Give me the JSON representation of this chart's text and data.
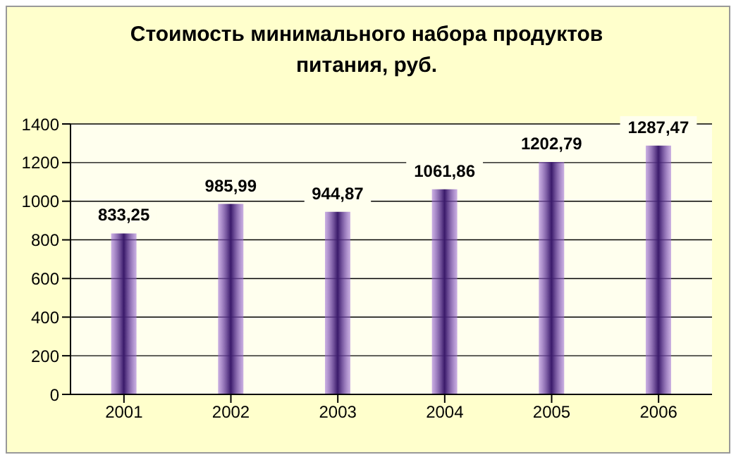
{
  "chart_data": {
    "type": "bar",
    "title": "Стоимость минимального набора продуктов питания, руб.",
    "categories": [
      "2001",
      "2002",
      "2003",
      "2004",
      "2005",
      "2006"
    ],
    "values": [
      833.25,
      985.99,
      944.87,
      1061.86,
      1202.79,
      1287.47
    ],
    "value_labels": [
      "833,25",
      "985,99",
      "944,87",
      "1061,86",
      "1202,79",
      "1287,47"
    ],
    "color": "#a070d8",
    "ylim": [
      0,
      1400
    ],
    "yticks": [
      0,
      200,
      400,
      600,
      800,
      1000,
      1200,
      1400
    ],
    "grid": "y"
  }
}
